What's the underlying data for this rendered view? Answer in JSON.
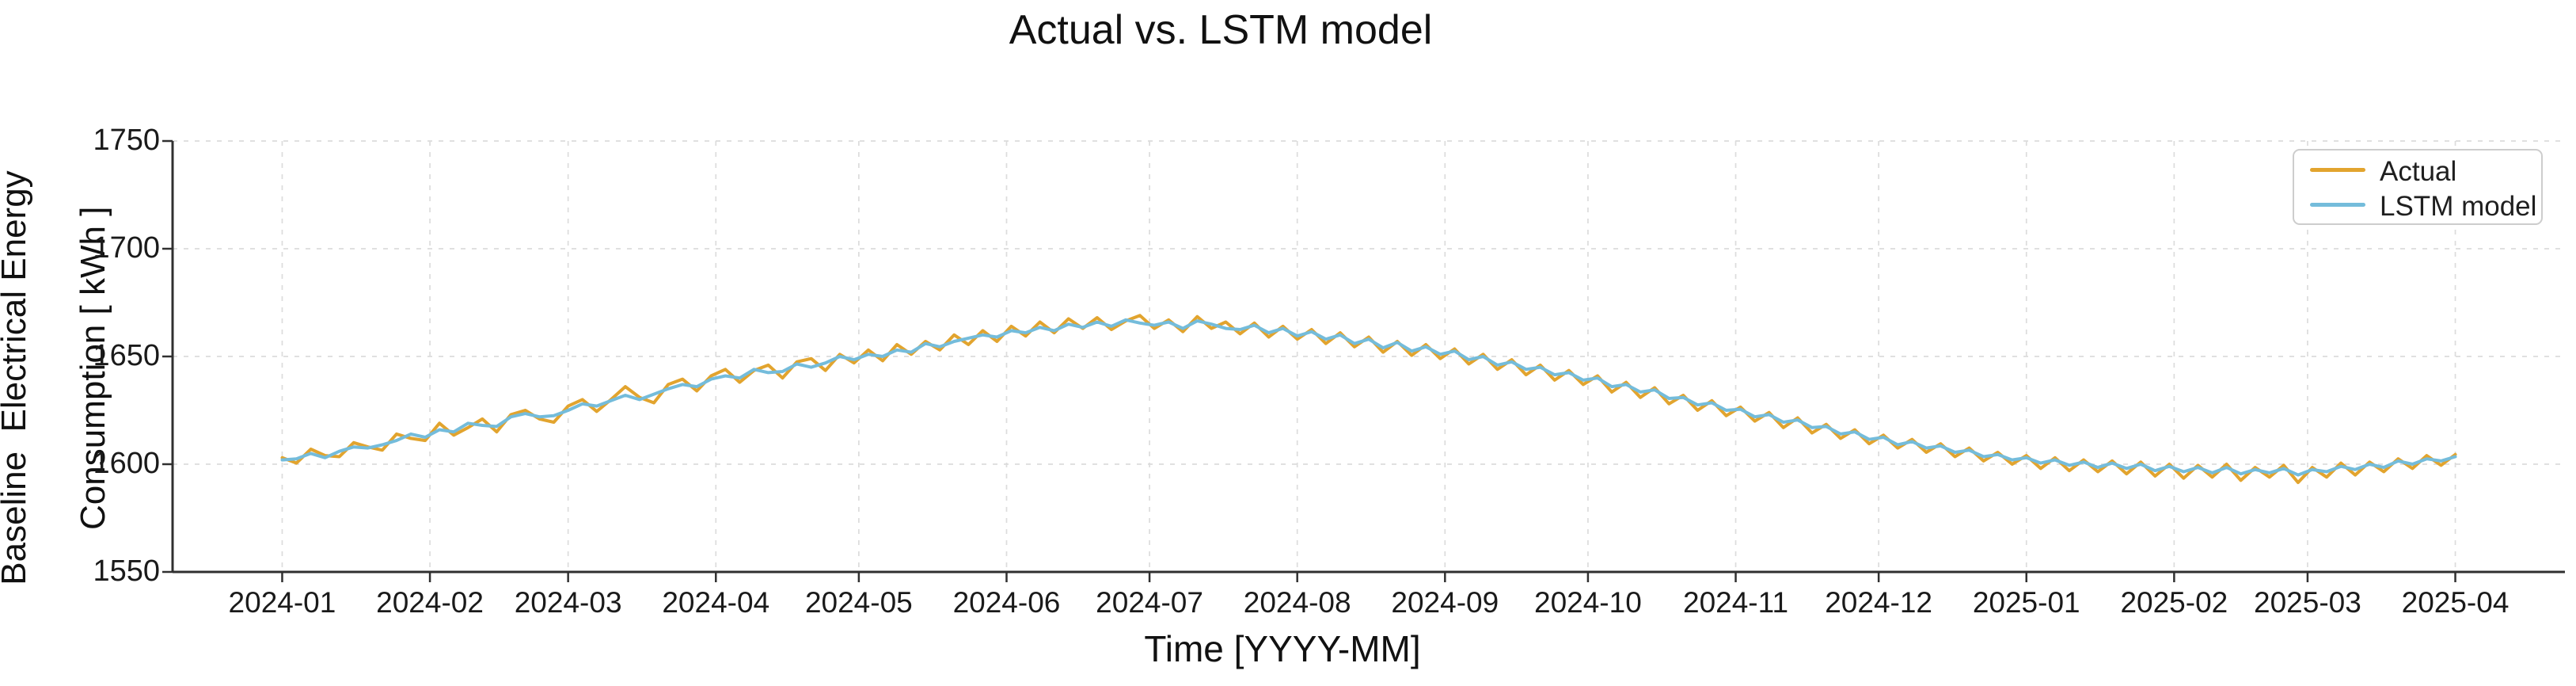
{
  "chart_data": {
    "type": "line",
    "title": "Actual vs. LSTM model",
    "xlabel": "Time [YYYY-MM]",
    "ylabel_line1": "Baseline  Electrical Energy",
    "ylabel_line2": "Consumption [ kWh ]",
    "ylim": [
      1550,
      1750
    ],
    "y_ticks": [
      1550,
      1600,
      1650,
      1700,
      1750
    ],
    "x_range_days": [
      -23,
      479
    ],
    "x_ticks": [
      {
        "label": "2024-01",
        "day": 0
      },
      {
        "label": "2024-02",
        "day": 31
      },
      {
        "label": "2024-03",
        "day": 60
      },
      {
        "label": "2024-04",
        "day": 91
      },
      {
        "label": "2024-05",
        "day": 121
      },
      {
        "label": "2024-06",
        "day": 152
      },
      {
        "label": "2024-07",
        "day": 182
      },
      {
        "label": "2024-08",
        "day": 213
      },
      {
        "label": "2024-09",
        "day": 244
      },
      {
        "label": "2024-10",
        "day": 274
      },
      {
        "label": "2024-11",
        "day": 305
      },
      {
        "label": "2024-12",
        "day": 335
      },
      {
        "label": "2025-01",
        "day": 366
      },
      {
        "label": "2025-02",
        "day": 397
      },
      {
        "label": "2025-03",
        "day": 425
      },
      {
        "label": "2025-04",
        "day": 456
      }
    ],
    "grid": {
      "show": true,
      "style": "dashed",
      "color": "#dcdcdc"
    },
    "legend": {
      "position": "top-right"
    },
    "colors": {
      "spine": "#303030",
      "tick_text": "#1a1a1a"
    },
    "series": [
      {
        "name": "Actual",
        "color": "#e2a42e",
        "start_date": "2024-01",
        "step_days": 3,
        "values": [
          1603,
          1600.5,
          1607,
          1604,
          1603.5,
          1610,
          1608,
          1606.5,
          1614,
          1612,
          1611,
          1619,
          1613.5,
          1617,
          1621,
          1615,
          1623,
          1625,
          1621,
          1619.5,
          1627,
          1630,
          1624.5,
          1630,
          1636,
          1631,
          1628.5,
          1637,
          1639.5,
          1634,
          1641,
          1644,
          1638,
          1643.5,
          1646,
          1640,
          1647.5,
          1649,
          1643.5,
          1651,
          1647,
          1653,
          1648,
          1655.5,
          1651,
          1657,
          1653,
          1660,
          1655.5,
          1662,
          1657,
          1664,
          1659.5,
          1666,
          1661,
          1667.5,
          1663,
          1668,
          1662.5,
          1666.5,
          1669,
          1663,
          1667,
          1661.5,
          1668.5,
          1663,
          1666,
          1660.5,
          1665.5,
          1659,
          1664,
          1658,
          1662.5,
          1656,
          1661,
          1654.5,
          1659,
          1652,
          1657,
          1650.5,
          1655.5,
          1649,
          1653.5,
          1646.5,
          1651,
          1644,
          1648.5,
          1641.5,
          1646,
          1639,
          1643.5,
          1637,
          1641,
          1633.5,
          1638,
          1631,
          1635.5,
          1628,
          1632,
          1625,
          1629.5,
          1622.5,
          1626.5,
          1620,
          1624,
          1617,
          1621.5,
          1614.5,
          1618.5,
          1612,
          1616,
          1609.5,
          1613.5,
          1607.5,
          1611.5,
          1605.5,
          1609.5,
          1603.5,
          1607.5,
          1601.5,
          1605.5,
          1600,
          1604,
          1598,
          1603,
          1597,
          1602,
          1596.5,
          1601.5,
          1595.5,
          1601,
          1594.5,
          1600,
          1593.5,
          1599.5,
          1594,
          1600,
          1592.5,
          1598.5,
          1594,
          1599.5,
          1591.5,
          1598.5,
          1594,
          1600.5,
          1595,
          1601,
          1596.5,
          1602.5,
          1598,
          1604,
          1599.5,
          1604.5
        ]
      },
      {
        "name": "LSTM model",
        "color": "#74bcdb",
        "start_date": "2024-01",
        "step_days": 3,
        "values": [
          1602,
          1602.5,
          1605,
          1603,
          1606,
          1608,
          1607.5,
          1609,
          1611,
          1614,
          1612.5,
          1616,
          1615,
          1619,
          1618,
          1617.5,
          1622,
          1623.5,
          1622,
          1622.5,
          1625,
          1628,
          1627,
          1629.5,
          1632,
          1630,
          1632.5,
          1635,
          1637,
          1636,
          1639.5,
          1641,
          1640,
          1644,
          1642.5,
          1643,
          1646.5,
          1645,
          1647,
          1650,
          1648.5,
          1651,
          1650,
          1653,
          1652,
          1656,
          1654.5,
          1657,
          1658.5,
          1660,
          1659,
          1662,
          1661,
          1663.5,
          1662,
          1665,
          1663.5,
          1666,
          1664,
          1667,
          1665.5,
          1664.5,
          1666,
          1663,
          1666.5,
          1665,
          1663,
          1662.5,
          1664.5,
          1661,
          1663,
          1659.5,
          1661.5,
          1658,
          1660,
          1656,
          1658,
          1654,
          1656.5,
          1652.5,
          1654.5,
          1651,
          1652.5,
          1648.5,
          1650,
          1646,
          1647.5,
          1644,
          1645,
          1641.5,
          1642.5,
          1639,
          1640,
          1636,
          1637,
          1633.5,
          1634.5,
          1630.5,
          1631,
          1627.5,
          1628.5,
          1625,
          1625.5,
          1622,
          1623,
          1619.5,
          1620.5,
          1617,
          1617.5,
          1614,
          1615,
          1611.5,
          1612.5,
          1609,
          1610.5,
          1607.5,
          1608.5,
          1605.5,
          1606.5,
          1603.5,
          1604.5,
          1602,
          1603,
          1600.5,
          1602,
          1599.5,
          1601,
          1598.5,
          1600.5,
          1598,
          1600,
          1597,
          1599,
          1596.5,
          1598.5,
          1596,
          1598.5,
          1595.5,
          1597.5,
          1596,
          1598,
          1595,
          1597.5,
          1596.5,
          1599,
          1597.5,
          1600,
          1598.5,
          1601.5,
          1600,
          1602.5,
          1601.5,
          1603.5
        ]
      }
    ]
  }
}
